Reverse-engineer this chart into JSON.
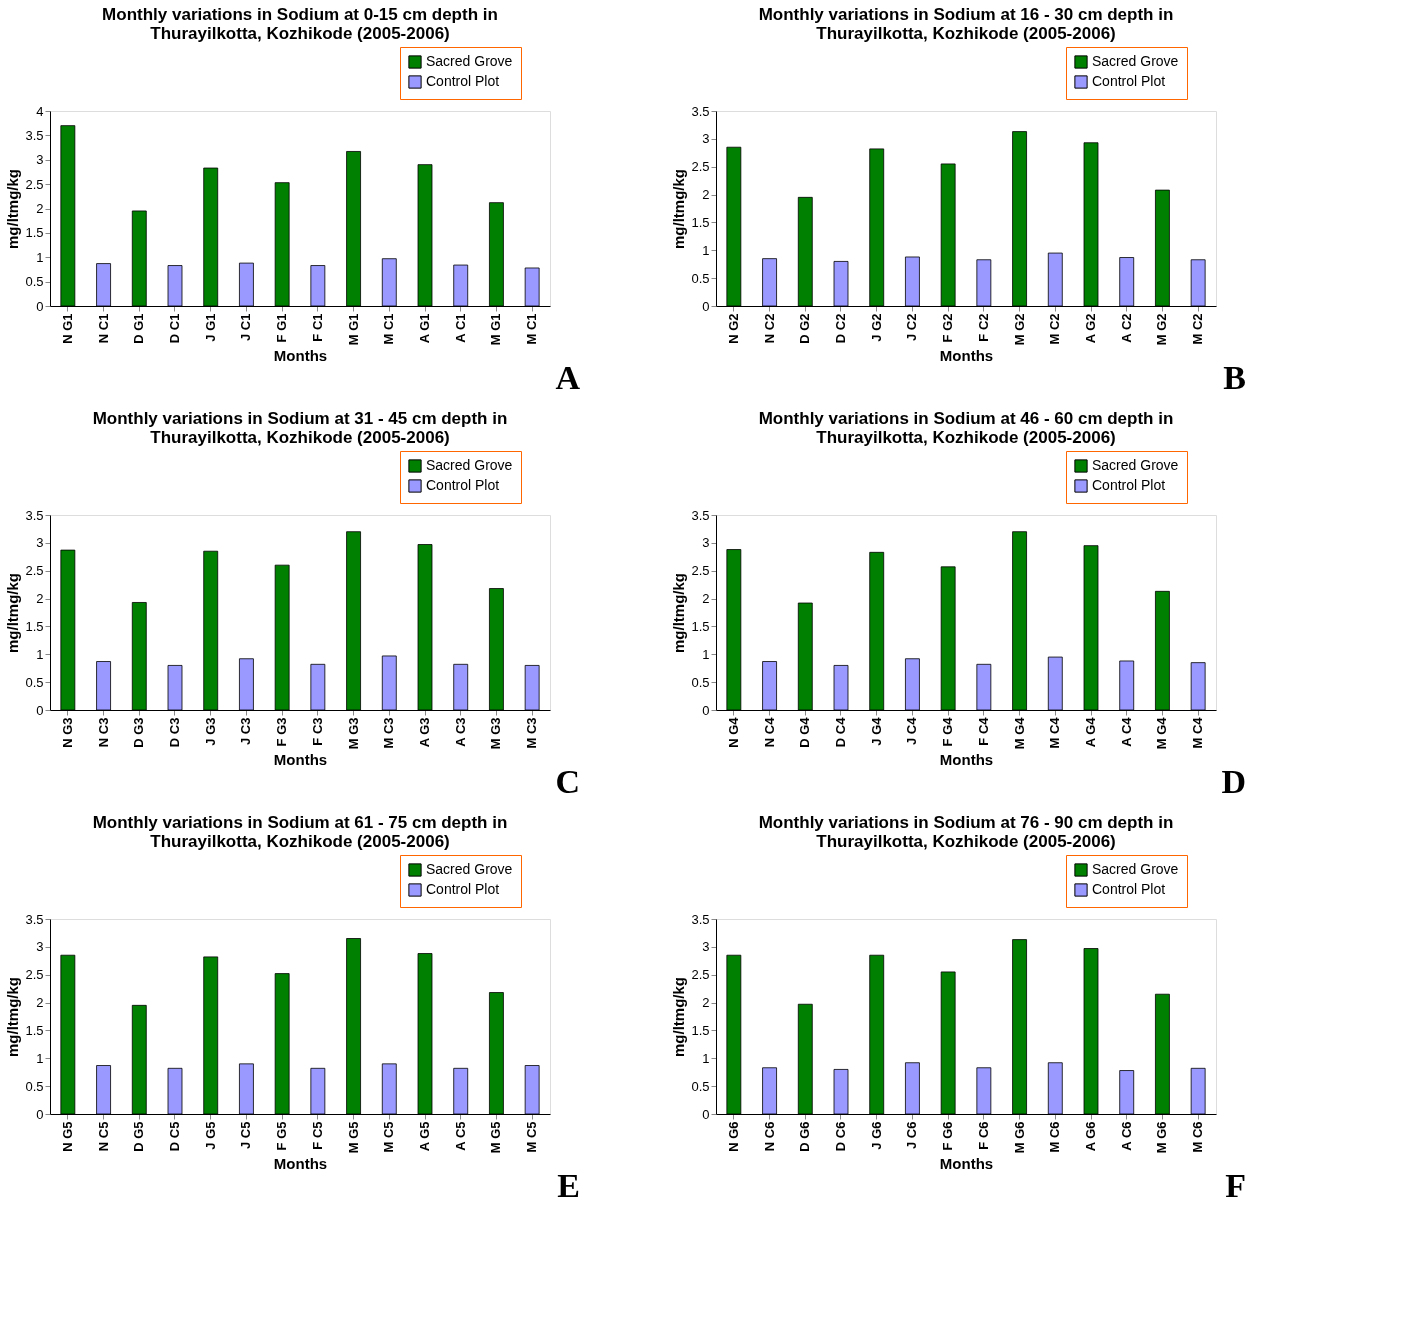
{
  "chart_data": [
    {
      "type": "bar",
      "title": "Monthly variations in Sodium at 0-15 cm depth in\nThurayilkotta, Kozhikode (2005-2006)",
      "xlabel": "Months",
      "ylabel": "mg/ltmg/kg",
      "categories": [
        "N G1",
        "N C1",
        "D G1",
        "D C1",
        "J G1",
        "J C1",
        "F G1",
        "F C1",
        "M G1",
        "M C1",
        "A G1",
        "A C1",
        "M G1",
        "M C1"
      ],
      "series": [
        {
          "name": "Sacred Grove",
          "color": "#008000",
          "values": [
            3.7,
            null,
            1.95,
            null,
            2.83,
            null,
            2.53,
            null,
            3.17,
            null,
            2.9,
            null,
            2.12,
            null
          ]
        },
        {
          "name": "Control Plot",
          "color": "#9999ff",
          "values": [
            null,
            0.87,
            null,
            0.83,
            null,
            0.88,
            null,
            0.83,
            null,
            0.97,
            null,
            0.84,
            null,
            0.78
          ]
        }
      ],
      "ylim": [
        0,
        4
      ],
      "yticks": [
        0,
        0.5,
        1,
        1.5,
        2,
        2.5,
        3,
        3.5,
        4
      ],
      "legend": "top right",
      "grid": false,
      "annotations": [
        "A"
      ]
    },
    {
      "type": "bar",
      "title": "Monthly variations in Sodium at 16 - 30 cm depth in\nThurayilkotta, Kozhikode (2005-2006)",
      "xlabel": "Months",
      "ylabel": "mg/ltmg/kg",
      "categories": [
        "N G2",
        "N C2",
        "D G2",
        "D C2",
        "J G2",
        "J C2",
        "F G2",
        "F C2",
        "M G2",
        "M C2",
        "A G2",
        "A C2",
        "M G2",
        "M C2"
      ],
      "series": [
        {
          "name": "Sacred Grove",
          "color": "#008000",
          "values": [
            2.85,
            null,
            1.95,
            null,
            2.82,
            null,
            2.55,
            null,
            3.13,
            null,
            2.93,
            null,
            2.08,
            null
          ]
        },
        {
          "name": "Control Plot",
          "color": "#9999ff",
          "values": [
            null,
            0.85,
            null,
            0.8,
            null,
            0.88,
            null,
            0.83,
            null,
            0.95,
            null,
            0.87,
            null,
            0.83
          ]
        }
      ],
      "ylim": [
        0,
        3.5
      ],
      "yticks": [
        0,
        0.5,
        1,
        1.5,
        2,
        2.5,
        3,
        3.5
      ],
      "legend": "top right",
      "grid": false,
      "annotations": [
        "B"
      ]
    },
    {
      "type": "bar",
      "title": "Monthly variations in Sodium at 31 - 45 cm depth in\nThurayilkotta, Kozhikode (2005-2006)",
      "xlabel": "Months",
      "ylabel": "mg/ltmg/kg",
      "categories": [
        "N G3",
        "N C3",
        "D G3",
        "D C3",
        "J G3",
        "J C3",
        "F G3",
        "F C3",
        "M G3",
        "M C3",
        "A G3",
        "A C3",
        "M G3",
        "M C3"
      ],
      "series": [
        {
          "name": "Sacred Grove",
          "color": "#008000",
          "values": [
            2.87,
            null,
            1.93,
            null,
            2.85,
            null,
            2.6,
            null,
            3.2,
            null,
            2.97,
            null,
            2.18,
            null
          ]
        },
        {
          "name": "Control Plot",
          "color": "#9999ff",
          "values": [
            null,
            0.87,
            null,
            0.8,
            null,
            0.92,
            null,
            0.82,
            null,
            0.97,
            null,
            0.82,
            null,
            0.8
          ]
        }
      ],
      "ylim": [
        0,
        3.5
      ],
      "yticks": [
        0,
        0.5,
        1,
        1.5,
        2,
        2.5,
        3,
        3.5
      ],
      "legend": "top right",
      "grid": false,
      "annotations": [
        "C"
      ]
    },
    {
      "type": "bar",
      "title": "Monthly variations in Sodium at 46 - 60 cm depth in\nThurayilkotta, Kozhikode (2005-2006)",
      "xlabel": "Months",
      "ylabel": "mg/ltmg/kg",
      "categories": [
        "N G4",
        "N C4",
        "D G4",
        "D C4",
        "J G4",
        "J C4",
        "F G4",
        "F C4",
        "M G4",
        "M C4",
        "A G4",
        "A C4",
        "M G4",
        "M C4"
      ],
      "series": [
        {
          "name": "Sacred Grove",
          "color": "#008000",
          "values": [
            2.88,
            null,
            1.92,
            null,
            2.83,
            null,
            2.57,
            null,
            3.2,
            null,
            2.95,
            null,
            2.13,
            null
          ]
        },
        {
          "name": "Control Plot",
          "color": "#9999ff",
          "values": [
            null,
            0.87,
            null,
            0.8,
            null,
            0.92,
            null,
            0.82,
            null,
            0.95,
            null,
            0.88,
            null,
            0.85
          ]
        }
      ],
      "ylim": [
        0,
        3.5
      ],
      "yticks": [
        0,
        0.5,
        1,
        1.5,
        2,
        2.5,
        3,
        3.5
      ],
      "legend": "top right",
      "grid": false,
      "annotations": [
        "D"
      ]
    },
    {
      "type": "bar",
      "title": "Monthly variations in Sodium at 61 - 75 cm depth in\nThurayilkotta, Kozhikode (2005-2006)",
      "xlabel": "Months",
      "ylabel": "mg/ltmg/kg",
      "categories": [
        "N G5",
        "N C5",
        "D G5",
        "D C5",
        "J G5",
        "J C5",
        "F G5",
        "F C5",
        "M G5",
        "M C5",
        "A G5",
        "A C5",
        "M G5",
        "M C5"
      ],
      "series": [
        {
          "name": "Sacred Grove",
          "color": "#008000",
          "values": [
            2.85,
            null,
            1.95,
            null,
            2.82,
            null,
            2.52,
            null,
            3.15,
            null,
            2.88,
            null,
            2.18,
            null
          ]
        },
        {
          "name": "Control Plot",
          "color": "#9999ff",
          "values": [
            null,
            0.87,
            null,
            0.82,
            null,
            0.9,
            null,
            0.82,
            null,
            0.9,
            null,
            0.82,
            null,
            0.87
          ]
        }
      ],
      "ylim": [
        0,
        3.5
      ],
      "yticks": [
        0,
        0.5,
        1,
        1.5,
        2,
        2.5,
        3,
        3.5
      ],
      "legend": "top right",
      "grid": false,
      "annotations": [
        "E"
      ]
    },
    {
      "type": "bar",
      "title": "Monthly variations in Sodium at 76 - 90 cm depth in\nThurayilkotta, Kozhikode (2005-2006)",
      "xlabel": "Months",
      "ylabel": "mg/ltmg/kg",
      "categories": [
        "N G6",
        "N C6",
        "D G6",
        "D C6",
        "J G6",
        "J C6",
        "F G6",
        "F C6",
        "M G6",
        "M C6",
        "A G6",
        "A C6",
        "M G6",
        "M C6"
      ],
      "series": [
        {
          "name": "Sacred Grove",
          "color": "#008000",
          "values": [
            2.85,
            null,
            1.97,
            null,
            2.85,
            null,
            2.55,
            null,
            3.13,
            null,
            2.97,
            null,
            2.15,
            null
          ]
        },
        {
          "name": "Control Plot",
          "color": "#9999ff",
          "values": [
            null,
            0.83,
            null,
            0.8,
            null,
            0.92,
            null,
            0.83,
            null,
            0.92,
            null,
            0.78,
            null,
            0.82
          ]
        }
      ],
      "ylim": [
        0,
        3.5
      ],
      "yticks": [
        0,
        0.5,
        1,
        1.5,
        2,
        2.5,
        3,
        3.5
      ],
      "legend": "top right",
      "grid": false,
      "annotations": [
        "F"
      ]
    }
  ]
}
